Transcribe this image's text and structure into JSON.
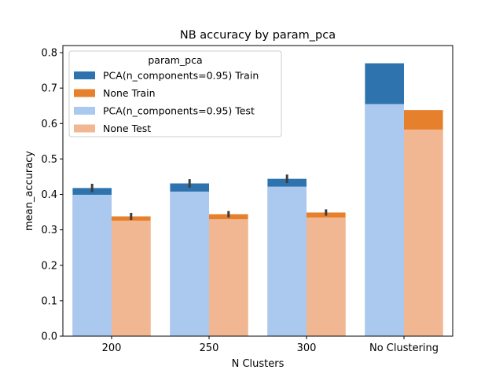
{
  "chart_data": {
    "type": "bar",
    "title": "NB accuracy by param_pca",
    "xlabel": "N Clusters",
    "ylabel": "mean_accuracy",
    "categories": [
      "200",
      "250",
      "300",
      "No Clustering"
    ],
    "ylim": [
      0,
      0.82
    ],
    "yticks": [
      0.0,
      0.1,
      0.2,
      0.3,
      0.4,
      0.5,
      0.6,
      0.7,
      0.8
    ],
    "ytick_labels": [
      "0.0",
      "0.1",
      "0.2",
      "0.3",
      "0.4",
      "0.5",
      "0.6",
      "0.7",
      "0.8"
    ],
    "grid": false,
    "legend": {
      "title": "param_pca",
      "placement": "top-left",
      "entries": [
        "PCA(n_components=0.95) Train",
        "None Train",
        "PCA(n_components=0.95) Test",
        "None Test"
      ]
    },
    "series": [
      {
        "name": "PCA(n_components=0.95) Train",
        "group": 0,
        "layer": "back",
        "color": "#2e73ad",
        "values": [
          0.418,
          0.431,
          0.444,
          0.77
        ],
        "err": [
          0.012,
          0.012,
          0.012,
          0
        ]
      },
      {
        "name": "None Train",
        "group": 1,
        "layer": "back",
        "color": "#e6802c",
        "values": [
          0.338,
          0.344,
          0.349,
          0.638
        ],
        "err": [
          0.01,
          0.009,
          0.009,
          0
        ]
      },
      {
        "name": "PCA(n_components=0.95) Test",
        "group": 0,
        "layer": "front",
        "color": "#abc8ef",
        "values": [
          0.399,
          0.408,
          0.422,
          0.655
        ]
      },
      {
        "name": "None Test",
        "group": 1,
        "layer": "front",
        "color": "#f1b792",
        "values": [
          0.326,
          0.33,
          0.335,
          0.583
        ]
      }
    ]
  }
}
